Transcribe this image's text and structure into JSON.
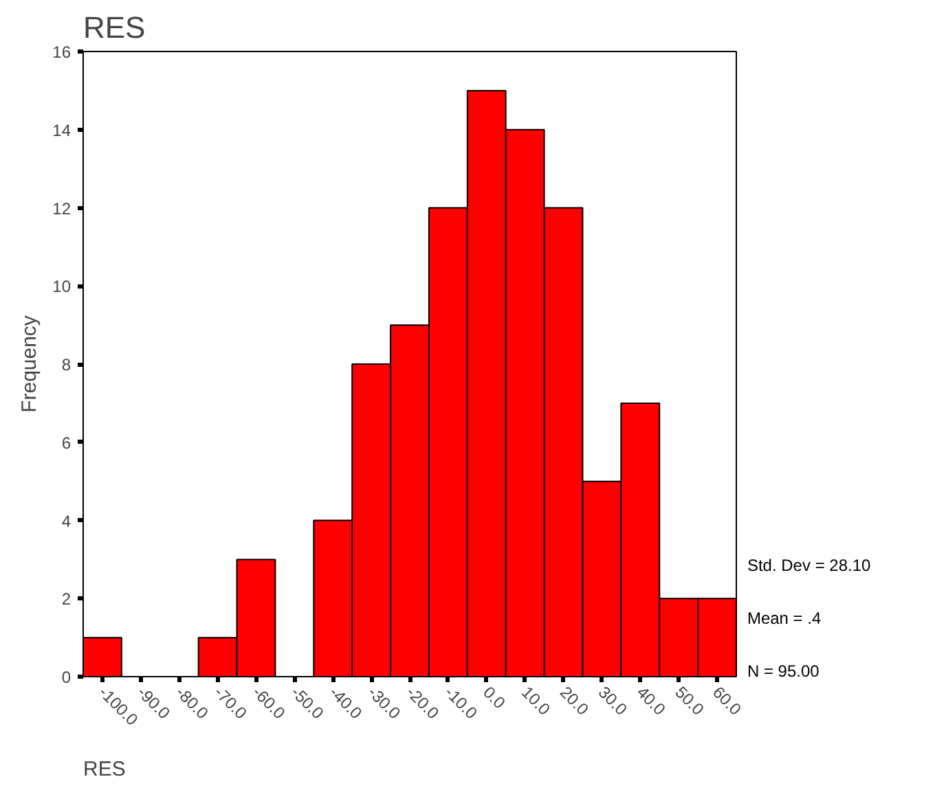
{
  "chart_data": {
    "type": "histogram",
    "title": "RES",
    "xlabel": "RES",
    "ylabel": "Frequency",
    "bins": [
      -105,
      -95,
      -85,
      -75,
      -65,
      -55,
      -45,
      -35,
      -25,
      -15,
      -5,
      5,
      15,
      25,
      35,
      45,
      55,
      65
    ],
    "values": [
      1,
      0,
      0,
      1,
      3,
      0,
      4,
      8,
      9,
      12,
      15,
      14,
      12,
      5,
      7,
      2,
      2
    ],
    "color": "#ff0000",
    "xlim": [
      -105,
      65
    ],
    "xticks": [
      {
        "value": -100,
        "label": "-100.0"
      },
      {
        "value": -90,
        "label": "-90.0"
      },
      {
        "value": -80,
        "label": "-80.0"
      },
      {
        "value": -70,
        "label": "-70.0"
      },
      {
        "value": -60,
        "label": "-60.0"
      },
      {
        "value": -50,
        "label": "-50.0"
      },
      {
        "value": -40,
        "label": "-40.0"
      },
      {
        "value": -30,
        "label": "-30.0"
      },
      {
        "value": -20,
        "label": "-20.0"
      },
      {
        "value": -10,
        "label": "-10.0"
      },
      {
        "value": 0,
        "label": "0.0"
      },
      {
        "value": 10,
        "label": "10.0"
      },
      {
        "value": 20,
        "label": "20.0"
      },
      {
        "value": 30,
        "label": "30.0"
      },
      {
        "value": 40,
        "label": "40.0"
      },
      {
        "value": 50,
        "label": "50.0"
      },
      {
        "value": 60,
        "label": "60.0"
      }
    ],
    "ylim": [
      0,
      16
    ],
    "yticks": [
      0,
      2,
      4,
      6,
      8,
      10,
      12,
      14,
      16
    ],
    "grid": false,
    "annotations": [
      "Std. Dev = 28.10",
      "Mean = .4",
      "N = 95.00"
    ]
  }
}
